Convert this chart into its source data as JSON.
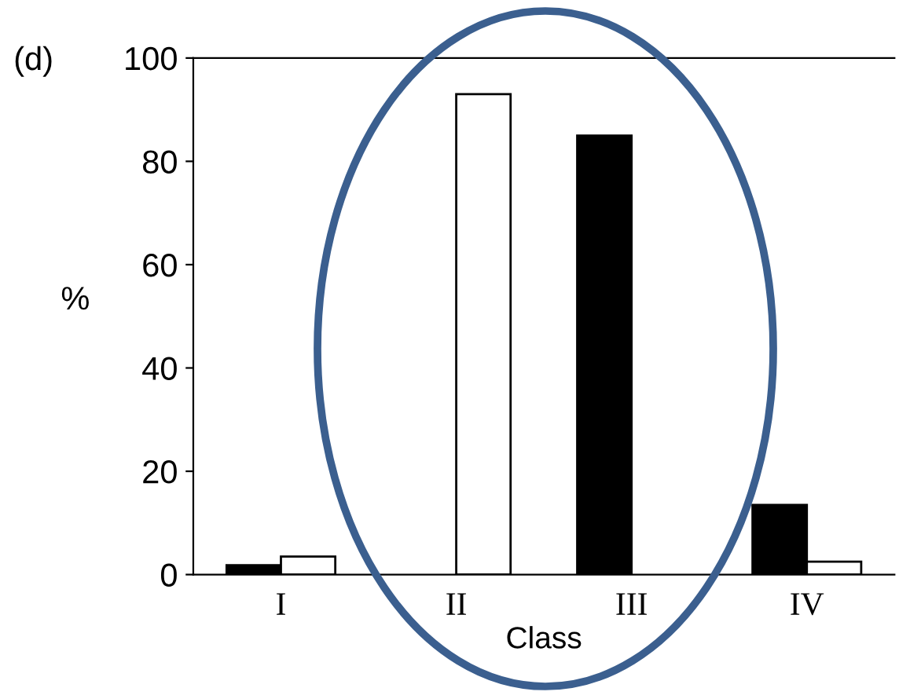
{
  "chart_data": {
    "type": "bar",
    "annotations": [
      "(d)"
    ],
    "xlabel": "Class",
    "ylabel": "%",
    "categories": [
      "I",
      "II",
      "III",
      "IV"
    ],
    "series": [
      {
        "color": "#000000",
        "values": [
          1.8,
          null,
          85,
          13.5
        ]
      },
      {
        "color": "#ffffff",
        "values": [
          3.5,
          93,
          null,
          2.5
        ]
      }
    ],
    "ylim": [
      0,
      100
    ],
    "yticks": [
      0,
      20,
      40,
      60,
      80,
      100
    ],
    "grid": false,
    "legend": false
  }
}
